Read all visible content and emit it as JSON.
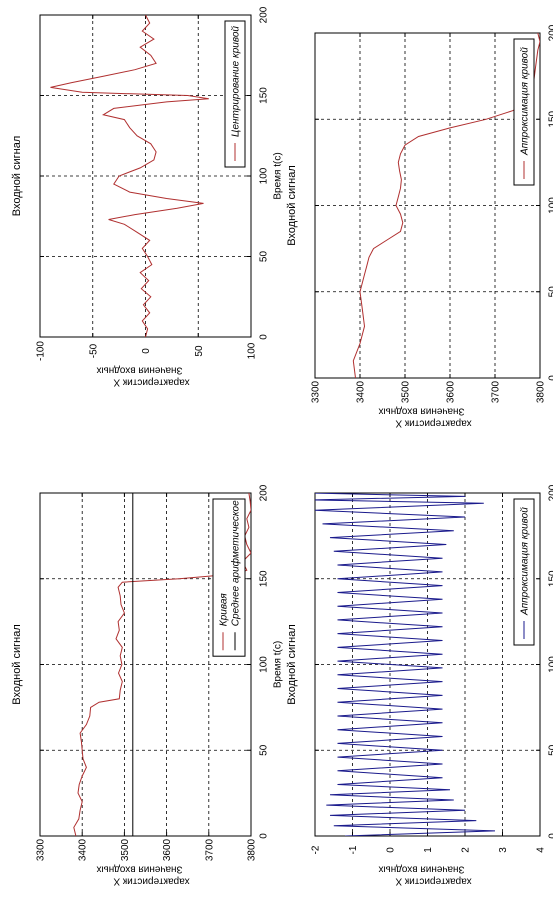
{
  "chart_data": [
    {
      "id": "p1",
      "type": "line",
      "title": "Входной сигнал",
      "xlabel": "Время t(c)",
      "ylabel_line1": "Значения входных",
      "ylabel_line2": "характеристик X",
      "xlim": [
        0,
        200
      ],
      "ylim": [
        3300,
        3800
      ],
      "xticks": [
        0,
        50,
        100,
        150,
        200
      ],
      "yticks": [
        3300,
        3400,
        3500,
        3600,
        3700,
        3800
      ],
      "grid": true,
      "legend": {
        "position": "top-right",
        "entries": [
          "Кривая",
          "Среднее арифметическое"
        ]
      },
      "series": [
        {
          "name": "Кривая",
          "color": "#b03030",
          "x": [
            0,
            5,
            10,
            15,
            20,
            25,
            30,
            35,
            40,
            45,
            50,
            55,
            60,
            65,
            70,
            75,
            78,
            80,
            85,
            90,
            95,
            100,
            105,
            110,
            115,
            120,
            125,
            130,
            135,
            140,
            145,
            148,
            150,
            153,
            155,
            160,
            165,
            170,
            175,
            180,
            185,
            190,
            195,
            200
          ],
          "values": [
            3385,
            3380,
            3392,
            3395,
            3400,
            3390,
            3393,
            3400,
            3410,
            3402,
            3400,
            3398,
            3395,
            3410,
            3418,
            3420,
            3440,
            3488,
            3490,
            3495,
            3486,
            3494,
            3490,
            3495,
            3480,
            3488,
            3485,
            3500,
            3492,
            3490,
            3485,
            3495,
            3630,
            3770,
            3790,
            3780,
            3800,
            3790,
            3785,
            3795,
            3790,
            3800,
            3798,
            3795
          ]
        },
        {
          "name": "Среднее арифметическое",
          "color": "#000000",
          "x": [
            0,
            200
          ],
          "values": [
            3520,
            3520
          ]
        }
      ]
    },
    {
      "id": "p2",
      "type": "line",
      "title": "Входной сигнал",
      "xlabel": "Время t(c)",
      "ylabel_line1": "Значения входных",
      "ylabel_line2": "характеристик X",
      "xlim": [
        0,
        200
      ],
      "ylim": [
        3300,
        3800
      ],
      "xticks": [
        0,
        50,
        100,
        150,
        200
      ],
      "yticks": [
        3300,
        3400,
        3500,
        3600,
        3700,
        3800
      ],
      "grid": true,
      "legend": {
        "position": "top-right",
        "entries": [
          "Аппроксимация кривой"
        ]
      },
      "series": [
        {
          "name": "Аппроксимация кривой",
          "color": "#b03030",
          "x": [
            0,
            10,
            20,
            30,
            40,
            50,
            60,
            65,
            70,
            75,
            80,
            85,
            90,
            95,
            100,
            105,
            110,
            115,
            120,
            125,
            130,
            135,
            140,
            145,
            150,
            155,
            160,
            170,
            180,
            190,
            195,
            200
          ],
          "values": [
            3390,
            3385,
            3400,
            3410,
            3405,
            3400,
            3410,
            3415,
            3420,
            3430,
            3460,
            3490,
            3495,
            3490,
            3480,
            3485,
            3490,
            3492,
            3488,
            3485,
            3490,
            3500,
            3530,
            3600,
            3680,
            3740,
            3770,
            3785,
            3790,
            3795,
            3800,
            3795
          ]
        }
      ]
    },
    {
      "id": "p3",
      "type": "line",
      "title": "Входной сигнал",
      "xlabel": "Время t(c)",
      "ylabel_line1": "Значения входных",
      "ylabel_line2": "характеристик X",
      "xlim": [
        0,
        200
      ],
      "ylim": [
        -100,
        100
      ],
      "xticks": [
        0,
        50,
        100,
        150,
        200
      ],
      "yticks": [
        -100,
        -50,
        0,
        50,
        100
      ],
      "grid": true,
      "legend": {
        "position": "top-right",
        "entries": [
          "Центрирование кривой"
        ]
      },
      "series": [
        {
          "name": "Центрирование кривой",
          "color": "#b03030",
          "x": [
            0,
            5,
            10,
            15,
            20,
            25,
            30,
            35,
            40,
            45,
            50,
            55,
            60,
            65,
            70,
            73,
            76,
            80,
            83,
            86,
            90,
            95,
            100,
            105,
            110,
            115,
            120,
            125,
            130,
            135,
            138,
            142,
            146,
            148,
            150,
            152,
            155,
            158,
            162,
            166,
            170,
            175,
            180,
            185,
            190,
            195,
            200
          ],
          "values": [
            0,
            2,
            -3,
            4,
            -2,
            5,
            -4,
            3,
            -5,
            6,
            2,
            -3,
            4,
            -8,
            -20,
            -35,
            -10,
            30,
            55,
            20,
            -15,
            -30,
            -25,
            -5,
            8,
            10,
            5,
            -8,
            -15,
            -20,
            -40,
            -30,
            20,
            60,
            40,
            -60,
            -90,
            -70,
            -40,
            -10,
            10,
            5,
            -5,
            8,
            -3,
            4,
            0
          ]
        }
      ]
    },
    {
      "id": "p4",
      "type": "line",
      "title": "Входной сигнал",
      "xlabel": "Время t(c)",
      "ylabel_line1": "Значения входных",
      "ylabel_line2": "характеристик X",
      "xlim": [
        0,
        200
      ],
      "ylim": [
        -2,
        4
      ],
      "xticks": [
        0,
        50,
        100,
        150,
        200
      ],
      "yticks": [
        -2,
        -1,
        0,
        1,
        2,
        3,
        4
      ],
      "grid": true,
      "legend": {
        "position": "top-right",
        "entries": [
          "Аппроксимация кривой"
        ]
      },
      "series": [
        {
          "name": "Аппроксимация кривой",
          "color": "#1a1a8c",
          "x": [
            0,
            3,
            6,
            9,
            12,
            15,
            18,
            21,
            24,
            27,
            30,
            34,
            38,
            42,
            46,
            50,
            54,
            58,
            62,
            66,
            70,
            74,
            78,
            82,
            86,
            90,
            94,
            98,
            102,
            106,
            110,
            114,
            118,
            122,
            126,
            130,
            134,
            138,
            142,
            146,
            150,
            154,
            158,
            162,
            166,
            170,
            174,
            178,
            182,
            186,
            190,
            194,
            196,
            198,
            200
          ],
          "values": [
            -1.2,
            2.8,
            -1.5,
            2.3,
            -1.6,
            2.0,
            -1.7,
            1.7,
            -1.6,
            1.6,
            -1.4,
            1.4,
            -1.4,
            1.4,
            -1.4,
            1.4,
            -1.4,
            1.4,
            -1.4,
            1.4,
            -1.4,
            1.4,
            -1.4,
            1.4,
            -1.4,
            1.4,
            -1.4,
            1.4,
            -1.4,
            1.4,
            -1.4,
            1.4,
            -1.4,
            1.4,
            -1.4,
            1.4,
            -1.4,
            1.4,
            -1.4,
            1.4,
            -1.4,
            1.4,
            -1.4,
            1.4,
            -1.5,
            1.5,
            -1.6,
            1.7,
            -1.8,
            2.0,
            -2.0,
            2.5,
            -2.1,
            2.0,
            -2.2
          ]
        }
      ]
    }
  ]
}
